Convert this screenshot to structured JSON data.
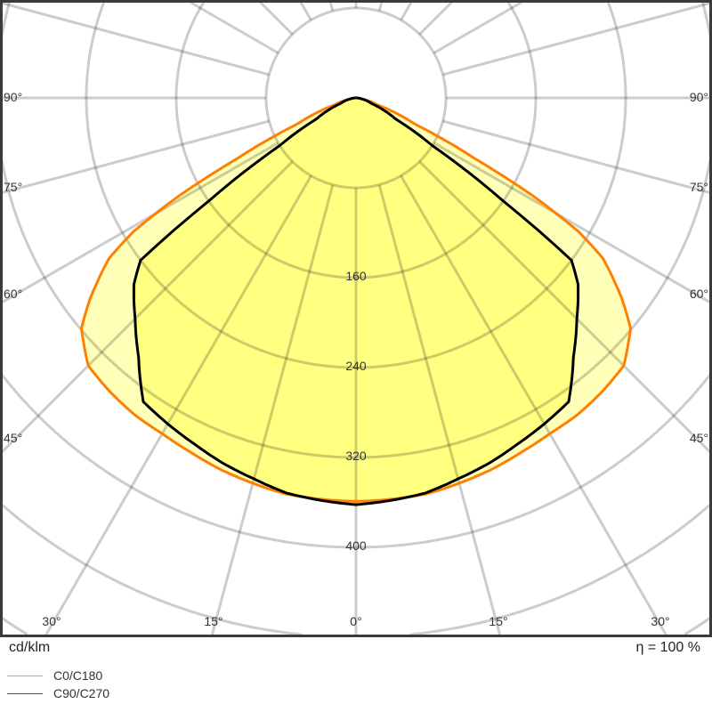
{
  "chart_data": {
    "type": "polar",
    "unit_label": "cd/klm",
    "efficiency_label": "η = 100 %",
    "radial_ticks": [
      80,
      160,
      240,
      320,
      400,
      480,
      560
    ],
    "radial_tick_labels": [
      "160",
      "240",
      "320",
      "400"
    ],
    "angle_grid_step_deg": 15,
    "side_angle_labels": [
      "90°",
      "75°",
      "60°",
      "45°"
    ],
    "bottom_angle_labels": [
      "30°",
      "15°",
      "0°",
      "15°",
      "30°"
    ],
    "grid": true,
    "legend_position": "bottom-left",
    "series": [
      {
        "name": "C0/C180",
        "color": "#ff7f00",
        "fill": "#ffffb8",
        "angles": [
          0,
          10,
          15,
          20,
          25,
          30,
          35,
          40,
          45,
          50,
          53,
          57,
          59,
          61,
          63,
          66,
          72,
          80,
          90
        ],
        "values": [
          359,
          358,
          355,
          352,
          348,
          345,
          344,
          341,
          337,
          319,
          296,
          262,
          231,
          181,
          118,
          58,
          20,
          6,
          0
        ]
      },
      {
        "name": "C90/C270",
        "color": "#000000",
        "fill": "#ffff80",
        "angles": [
          0,
          10,
          15,
          20,
          25,
          30,
          35,
          40,
          45,
          50,
          53,
          55,
          58,
          62,
          70,
          80,
          90
        ],
        "values": [
          362,
          357,
          351,
          346,
          340,
          335,
          330,
          301,
          278,
          258,
          240,
          160,
          80,
          40,
          15,
          5,
          0
        ]
      }
    ]
  }
}
